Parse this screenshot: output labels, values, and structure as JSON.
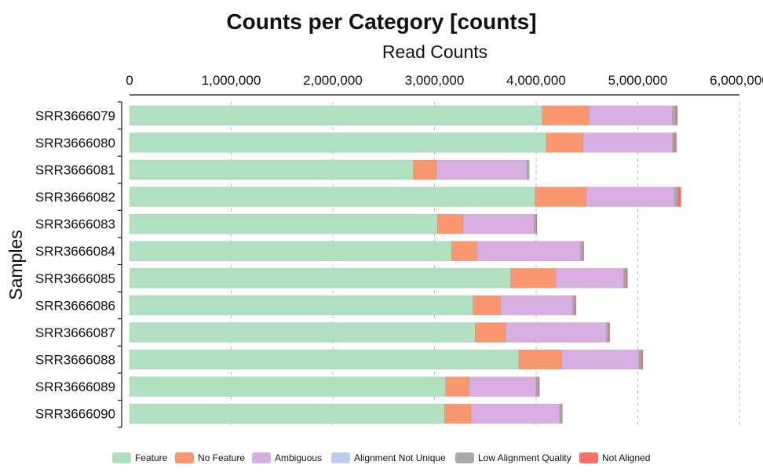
{
  "chart_data": {
    "type": "bar",
    "orientation": "horizontal",
    "stacked": true,
    "title": "Counts per Category [counts]",
    "xlabel": "Read Counts",
    "ylabel": "Samples",
    "xlim": [
      0,
      6000000
    ],
    "x_ticks": [
      0,
      1000000,
      2000000,
      3000000,
      4000000,
      5000000,
      6000000
    ],
    "x_tick_labels": [
      "0",
      "1,000,000",
      "2,000,000",
      "3,000,000",
      "4,000,000",
      "5,000,000",
      "6,000,000"
    ],
    "x_axis_position": "top",
    "grid": true,
    "legend_position": "bottom",
    "categories": [
      "SRR3666079",
      "SRR3666080",
      "SRR3666081",
      "SRR3666082",
      "SRR3666083",
      "SRR3666084",
      "SRR3666085",
      "SRR3666086",
      "SRR3666087",
      "SRR3666088",
      "SRR3666089",
      "SRR3666090"
    ],
    "series": [
      {
        "name": "Feature",
        "color": "#b2dfbf",
        "values": [
          4060000,
          4100000,
          2790000,
          3990000,
          3030000,
          3170000,
          3750000,
          3380000,
          3400000,
          3830000,
          3110000,
          3100000
        ]
      },
      {
        "name": "No Feature",
        "color": "#f99870",
        "values": [
          460000,
          360000,
          230000,
          500000,
          250000,
          250000,
          440000,
          270000,
          300000,
          420000,
          230000,
          260000
        ]
      },
      {
        "name": "Ambiguous",
        "color": "#d6aedf",
        "values": [
          820000,
          880000,
          890000,
          870000,
          700000,
          1020000,
          670000,
          710000,
          990000,
          760000,
          660000,
          870000
        ]
      },
      {
        "name": "Alignment Not Unique",
        "color": "#bccbf0",
        "values": [
          5000,
          5000,
          3000,
          5000,
          3000,
          4000,
          4000,
          3000,
          4000,
          4000,
          3000,
          3000
        ]
      },
      {
        "name": "Low Alignment Quality",
        "color": "#a9a9a9",
        "values": [
          30000,
          20000,
          20000,
          30000,
          20000,
          20000,
          20000,
          20000,
          20000,
          20000,
          20000,
          20000
        ]
      },
      {
        "name": "Not Aligned",
        "color": "#f7716c",
        "values": [
          15000,
          15000,
          0,
          30000,
          5000,
          5000,
          15000,
          10000,
          10000,
          15000,
          10000,
          5000
        ]
      }
    ]
  }
}
